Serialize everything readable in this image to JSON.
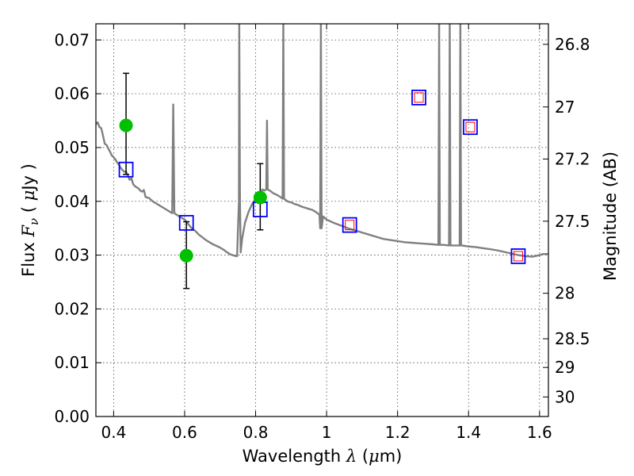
{
  "chart_data": {
    "type": "scatter",
    "title": "",
    "xlabel": {
      "prefix": "Wavelength  ",
      "symbol": "λ",
      "unit_open": " (",
      "unit_mu": "μ",
      "unit_close": "m)"
    },
    "ylabel": {
      "prefix": "Flux  ",
      "symbol": "F",
      "sub": "ν",
      "unit_open": "  ( ",
      "unit_mu": "μ",
      "unit_close": "Jy )"
    },
    "y2label": "Magnitude (AB)",
    "xlim": [
      0.35,
      1.625
    ],
    "ylim": [
      0.0,
      0.073
    ],
    "grid": true,
    "x_ticks": [
      0.4,
      0.6,
      0.8,
      1.0,
      1.2,
      1.4,
      1.6
    ],
    "x_tick_labels": [
      "0.4",
      "0.6",
      "0.8",
      "1",
      "1.2",
      "1.4",
      "1.6"
    ],
    "y_ticks": [
      0.0,
      0.01,
      0.02,
      0.03,
      0.04,
      0.05,
      0.06,
      0.07
    ],
    "y_tick_labels": [
      "0.00",
      "0.01",
      "0.02",
      "0.03",
      "0.04",
      "0.05",
      "0.06",
      "0.07"
    ],
    "y2_ticks": [
      26.8,
      27.0,
      27.2,
      27.5,
      28.0,
      28.5,
      29.0,
      30.0
    ],
    "y2_tick_labels": [
      "26.8",
      "27",
      "27.2",
      "27.5",
      "28",
      "28.5",
      "29",
      "30"
    ],
    "colors": {
      "sed": "#808080",
      "observed": "#00c000",
      "errorbar": "#000000",
      "model_box": "#0000ff",
      "inner_box": "#ff0000"
    },
    "series": [
      {
        "kind": "line",
        "points": [
          [
            0.35,
            0.0543
          ],
          [
            0.355,
            0.0547
          ],
          [
            0.36,
            0.0538
          ],
          [
            0.365,
            0.0536
          ],
          [
            0.37,
            0.0522
          ],
          [
            0.375,
            0.0507
          ],
          [
            0.38,
            0.0505
          ],
          [
            0.385,
            0.0498
          ],
          [
            0.39,
            0.0492
          ],
          [
            0.395,
            0.0485
          ],
          [
            0.4,
            0.0482
          ],
          [
            0.405,
            0.0478
          ],
          [
            0.41,
            0.0472
          ],
          [
            0.415,
            0.0468
          ],
          [
            0.42,
            0.0462
          ],
          [
            0.425,
            0.0458
          ],
          [
            0.43,
            0.0455
          ],
          [
            0.435,
            0.0455
          ],
          [
            0.44,
            0.0448
          ],
          [
            0.445,
            0.044
          ],
          [
            0.45,
            0.0443
          ],
          [
            0.455,
            0.0432
          ],
          [
            0.46,
            0.0428
          ],
          [
            0.465,
            0.0426
          ],
          [
            0.47,
            0.0424
          ],
          [
            0.475,
            0.042
          ],
          [
            0.48,
            0.0418
          ],
          [
            0.485,
            0.0421
          ],
          [
            0.49,
            0.0408
          ],
          [
            0.5,
            0.0406
          ],
          [
            0.51,
            0.04
          ],
          [
            0.52,
            0.0396
          ],
          [
            0.53,
            0.0392
          ],
          [
            0.54,
            0.0388
          ],
          [
            0.55,
            0.0384
          ],
          [
            0.56,
            0.038
          ],
          [
            0.565,
            0.0378
          ],
          [
            0.568,
            0.058
          ],
          [
            0.571,
            0.0378
          ],
          [
            0.58,
            0.0374
          ],
          [
            0.59,
            0.037
          ],
          [
            0.6,
            0.0366
          ],
          [
            0.61,
            0.0358
          ],
          [
            0.62,
            0.035
          ],
          [
            0.63,
            0.0345
          ],
          [
            0.64,
            0.0338
          ],
          [
            0.65,
            0.0333
          ],
          [
            0.66,
            0.0328
          ],
          [
            0.67,
            0.0324
          ],
          [
            0.68,
            0.032
          ],
          [
            0.69,
            0.0317
          ],
          [
            0.7,
            0.0314
          ],
          [
            0.71,
            0.031
          ],
          [
            0.72,
            0.0305
          ],
          [
            0.73,
            0.0301
          ],
          [
            0.74,
            0.0299
          ],
          [
            0.748,
            0.0298
          ],
          [
            0.75,
            0.034
          ],
          [
            0.753,
            0.04
          ],
          [
            0.754,
            0.073
          ],
          [
            0.756,
            0.04
          ],
          [
            0.758,
            0.0305
          ],
          [
            0.762,
            0.033
          ],
          [
            0.77,
            0.036
          ],
          [
            0.78,
            0.038
          ],
          [
            0.79,
            0.0395
          ],
          [
            0.8,
            0.0405
          ],
          [
            0.81,
            0.0415
          ],
          [
            0.815,
            0.0418
          ],
          [
            0.82,
            0.0422
          ],
          [
            0.825,
            0.042
          ],
          [
            0.83,
            0.0422
          ],
          [
            0.832,
            0.055
          ],
          [
            0.834,
            0.0422
          ],
          [
            0.84,
            0.042
          ],
          [
            0.85,
            0.0415
          ],
          [
            0.86,
            0.0412
          ],
          [
            0.87,
            0.0408
          ],
          [
            0.876,
            0.0405
          ],
          [
            0.878,
            0.073
          ],
          [
            0.88,
            0.0405
          ],
          [
            0.89,
            0.04
          ],
          [
            0.9,
            0.0398
          ],
          [
            0.91,
            0.0395
          ],
          [
            0.92,
            0.0393
          ],
          [
            0.93,
            0.039
          ],
          [
            0.94,
            0.0388
          ],
          [
            0.95,
            0.0386
          ],
          [
            0.96,
            0.0384
          ],
          [
            0.97,
            0.038
          ],
          [
            0.98,
            0.0375
          ],
          [
            0.982,
            0.035
          ],
          [
            0.984,
            0.073
          ],
          [
            0.986,
            0.035
          ],
          [
            0.99,
            0.0372
          ],
          [
            1.0,
            0.0366
          ],
          [
            1.02,
            0.036
          ],
          [
            1.04,
            0.0355
          ],
          [
            1.06,
            0.035
          ],
          [
            1.08,
            0.0346
          ],
          [
            1.1,
            0.0342
          ],
          [
            1.12,
            0.0338
          ],
          [
            1.14,
            0.0334
          ],
          [
            1.16,
            0.033
          ],
          [
            1.18,
            0.0328
          ],
          [
            1.2,
            0.0326
          ],
          [
            1.22,
            0.0324
          ],
          [
            1.24,
            0.0323
          ],
          [
            1.26,
            0.0322
          ],
          [
            1.28,
            0.0321
          ],
          [
            1.3,
            0.032
          ],
          [
            1.315,
            0.0319
          ],
          [
            1.317,
            0.073
          ],
          [
            1.319,
            0.0319
          ],
          [
            1.33,
            0.0319
          ],
          [
            1.345,
            0.0318
          ],
          [
            1.347,
            0.073
          ],
          [
            1.349,
            0.0318
          ],
          [
            1.355,
            0.0318
          ],
          [
            1.36,
            0.0318
          ],
          [
            1.375,
            0.0318
          ],
          [
            1.377,
            0.073
          ],
          [
            1.379,
            0.0318
          ],
          [
            1.39,
            0.0317
          ],
          [
            1.4,
            0.0316
          ],
          [
            1.42,
            0.0315
          ],
          [
            1.44,
            0.0313
          ],
          [
            1.46,
            0.0311
          ],
          [
            1.48,
            0.0309
          ],
          [
            1.5,
            0.0306
          ],
          [
            1.52,
            0.0303
          ],
          [
            1.54,
            0.03
          ],
          [
            1.56,
            0.0298
          ],
          [
            1.58,
            0.0297
          ],
          [
            1.6,
            0.03
          ],
          [
            1.61,
            0.0302
          ],
          [
            1.625,
            0.0302
          ]
        ]
      },
      {
        "kind": "points_with_errorbars",
        "points": [
          {
            "x": 0.435,
            "y": 0.0541,
            "ylow": 0.045,
            "yhigh": 0.0638
          },
          {
            "x": 0.605,
            "y": 0.0299,
            "ylow": 0.0238,
            "yhigh": 0.0362
          },
          {
            "x": 0.813,
            "y": 0.0407,
            "ylow": 0.0347,
            "yhigh": 0.047
          }
        ]
      },
      {
        "kind": "open_squares",
        "points": [
          {
            "x": 0.435,
            "y": 0.0459
          },
          {
            "x": 0.605,
            "y": 0.036
          },
          {
            "x": 0.813,
            "y": 0.0385
          },
          {
            "x": 1.065,
            "y": 0.0356
          },
          {
            "x": 1.26,
            "y": 0.0593
          },
          {
            "x": 1.405,
            "y": 0.0538
          },
          {
            "x": 1.54,
            "y": 0.0298
          }
        ]
      },
      {
        "kind": "inner_squares",
        "points": [
          {
            "x": 1.065,
            "y": 0.0356
          },
          {
            "x": 1.26,
            "y": 0.0593
          },
          {
            "x": 1.405,
            "y": 0.0538
          },
          {
            "x": 1.54,
            "y": 0.0298
          }
        ]
      }
    ]
  }
}
